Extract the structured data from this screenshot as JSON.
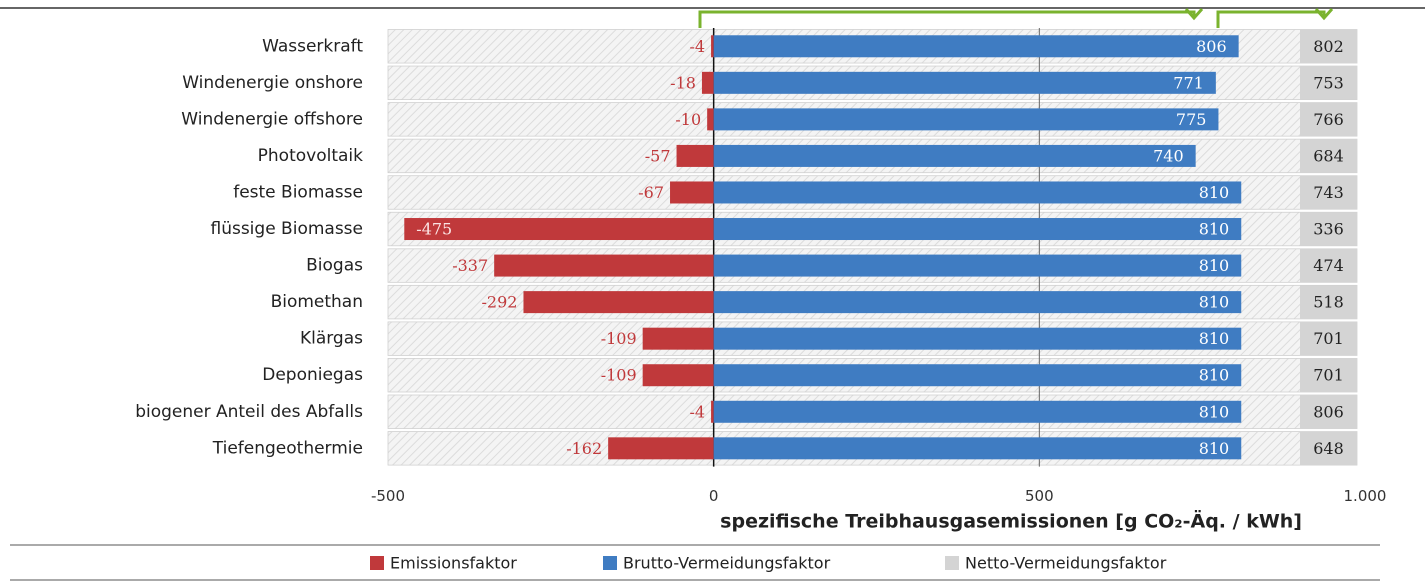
{
  "chart_data": {
    "type": "bar",
    "orientation": "horizontal",
    "categories": [
      "Wasserkraft",
      "Windenergie onshore",
      "Windenergie offshore",
      "Photovoltaik",
      "feste Biomasse",
      "flüssige Biomasse",
      "Biogas",
      "Biomethan",
      "Klärgas",
      "Deponiegas",
      "biogener Anteil des Abfalls",
      "Tiefengeothermie"
    ],
    "series": [
      {
        "name": "Emissionsfaktor",
        "color": "#c0393b",
        "values": [
          -4,
          -18,
          -10,
          -57,
          -67,
          -475,
          -337,
          -292,
          -109,
          -109,
          -4,
          -162
        ]
      },
      {
        "name": "Brutto-Vermeidungsfaktor",
        "color": "#3f7cc2",
        "values": [
          806,
          771,
          775,
          740,
          810,
          810,
          810,
          810,
          810,
          810,
          810,
          810
        ]
      },
      {
        "name": "Netto-Vermeidungsfaktor",
        "color": "#d4d4d4",
        "values": [
          802,
          753,
          766,
          684,
          743,
          336,
          474,
          518,
          701,
          701,
          806,
          648
        ]
      }
    ],
    "xlabel": "spezifische Treibhausgasemissionen [g CO₂-Äq. / kWh]",
    "xlim": [
      -500,
      1000
    ],
    "xticks": [
      -500,
      0,
      500,
      {
        "value": 1000,
        "label": "1.000"
      }
    ],
    "legend": "bottom"
  }
}
